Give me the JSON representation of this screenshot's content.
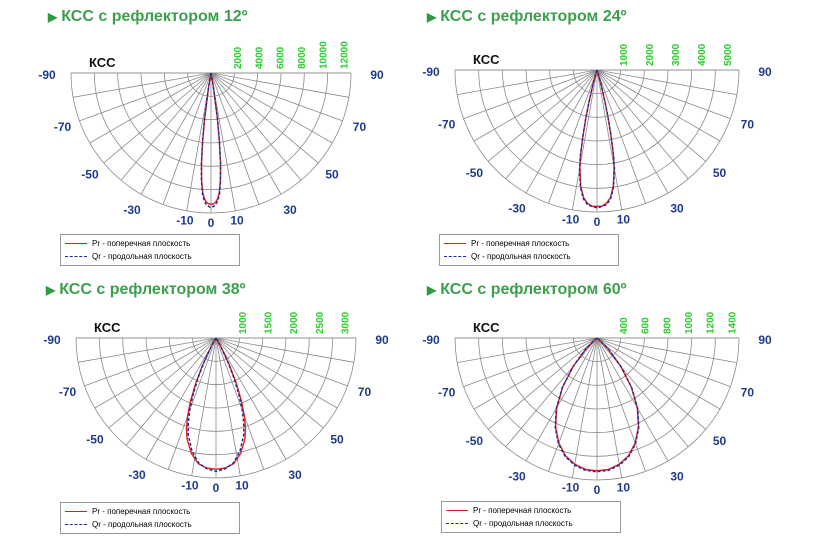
{
  "colors": {
    "title_green": "#3d9f4e",
    "scale_green": "#2ecc2e",
    "angle_blue": "#1d3a8e",
    "grid": "#8a8a8a",
    "pr_red": "#e31b1b",
    "qr_blue": "#1a2a9a",
    "purple": "#7a2a9a"
  },
  "legend": {
    "pr_label": "Pr - поперечная плоскость",
    "qr_label": "Qr - продольная плоскость"
  },
  "chart_data": [
    {
      "type": "polar",
      "title": "КСС с рефлектором 12º",
      "ylabel": "КСС",
      "radial_ticks": [
        "2000",
        "4000",
        "6000",
        "8000",
        "10000",
        "12000"
      ],
      "radial_max": 13000,
      "angle_labels": [
        "-90",
        "-70",
        "-50",
        "-30",
        "-10",
        "0",
        "10",
        "30",
        "50",
        "70",
        "90"
      ],
      "series": [
        {
          "name": "Pr - поперечная плоскость",
          "angles": [
            0,
            1,
            2,
            3,
            4,
            5,
            6,
            7,
            8,
            10,
            90
          ],
          "values": [
            12200,
            12150,
            12000,
            11700,
            11100,
            10000,
            8400,
            6300,
            4300,
            1200,
            0
          ]
        },
        {
          "name": "Qr - продольная плоскость",
          "angles": [
            0,
            1,
            2,
            3,
            4,
            5,
            6,
            7,
            8,
            10,
            90
          ],
          "values": [
            12500,
            12400,
            12250,
            11900,
            11300,
            10100,
            8500,
            6500,
            4400,
            1300,
            0
          ]
        }
      ]
    },
    {
      "type": "polar",
      "title": "КСС с рефлектором 24º",
      "ylabel": "КСС",
      "radial_ticks": [
        "1000",
        "2000",
        "3000",
        "4000",
        "5000"
      ],
      "radial_max": 5200,
      "angle_labels": [
        "-90",
        "-70",
        "-50",
        "-30",
        "-10",
        "0",
        "10",
        "30",
        "50",
        "70",
        "90"
      ],
      "series": [
        {
          "name": "Pr - поперечная плоскость",
          "angles": [
            0,
            2,
            4,
            6,
            8,
            10,
            11,
            12,
            13,
            14,
            16,
            90
          ],
          "values": [
            5000,
            4990,
            4900,
            4700,
            4300,
            3600,
            3100,
            2450,
            1800,
            1200,
            450,
            0
          ]
        },
        {
          "name": "Qr - продольная плоскость",
          "angles": [
            0,
            2,
            4,
            6,
            8,
            10,
            11,
            12,
            13,
            14,
            16,
            90
          ],
          "values": [
            5050,
            5000,
            4950,
            4750,
            4350,
            3700,
            3200,
            2500,
            1850,
            1250,
            500,
            0
          ]
        }
      ]
    },
    {
      "type": "polar",
      "title": "КСС с рефлектором 38º",
      "ylabel": "КСС",
      "radial_ticks": [
        "1000",
        "1500",
        "2000",
        "2500",
        "3000"
      ],
      "radial_max": 3200,
      "angle_labels": [
        "-90",
        "-70",
        "-50",
        "-30",
        "-10",
        "0",
        "10",
        "30",
        "50",
        "70",
        "90"
      ],
      "series": [
        {
          "name": "Pr - поперечная плоскость",
          "angles": [
            0,
            4,
            8,
            12,
            16,
            18,
            20,
            22,
            24,
            26,
            30,
            90
          ],
          "values": [
            3000,
            2980,
            2900,
            2700,
            2400,
            2180,
            1900,
            1550,
            1150,
            750,
            200,
            0
          ]
        },
        {
          "name": "Qr - продольная плоскость",
          "angles": [
            0,
            4,
            8,
            12,
            16,
            18,
            20,
            22,
            24,
            26,
            30,
            90
          ],
          "values": [
            3050,
            3000,
            2880,
            2640,
            2300,
            2050,
            1750,
            1400,
            1020,
            650,
            180,
            0
          ]
        }
      ]
    },
    {
      "type": "polar",
      "title": "КСС с рефлектором 60º",
      "ylabel": "КСС",
      "radial_ticks": [
        "400",
        "600",
        "800",
        "1000",
        "1200",
        "1400"
      ],
      "radial_max": 1550,
      "angle_labels": [
        "-90",
        "-70",
        "-50",
        "-30",
        "-10",
        "0",
        "10",
        "30",
        "50",
        "70",
        "90"
      ],
      "series": [
        {
          "name": "Pr - поперечная плоскость",
          "angles": [
            0,
            5,
            10,
            15,
            20,
            25,
            30,
            35,
            40,
            45,
            50,
            90
          ],
          "values": [
            1450,
            1440,
            1400,
            1330,
            1220,
            1070,
            880,
            650,
            400,
            180,
            40,
            0
          ]
        },
        {
          "name": "Qr - продольная плоскость",
          "angles": [
            0,
            5,
            10,
            15,
            20,
            25,
            30,
            35,
            40,
            45,
            50,
            90
          ],
          "values": [
            1460,
            1450,
            1410,
            1340,
            1230,
            1080,
            890,
            660,
            410,
            190,
            45,
            0
          ]
        }
      ]
    }
  ]
}
